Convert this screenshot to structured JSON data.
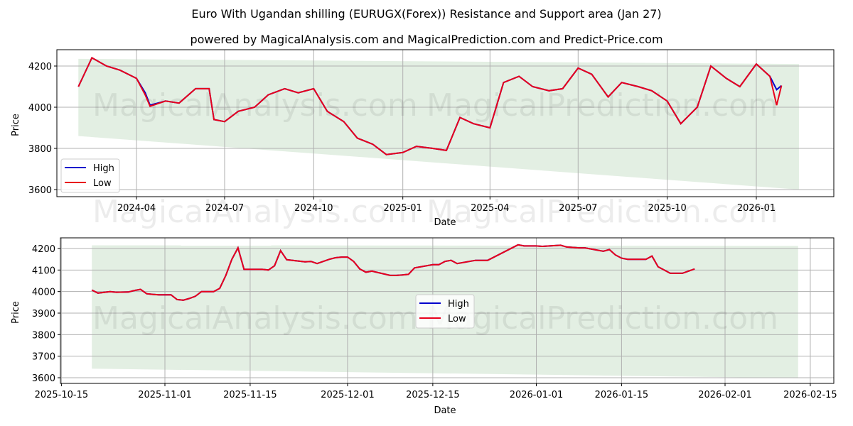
{
  "title": "Euro With Ugandan shilling (EURUGX(Forex)) Resistance and Support area (Jan 27)",
  "subtitle": "powered by MagicalAnalysis.com and MagicalPrediction.com and Predict-Price.com",
  "watermarks": [
    "MagicalAnalysis.com",
    "MagicalPrediction.com"
  ],
  "colors": {
    "high": "#0000cc",
    "low": "#e8001c",
    "band": "#e3efe3",
    "grid": "#b0b0b0"
  },
  "legend": {
    "high": "High",
    "low": "Low"
  },
  "chart_data": [
    {
      "type": "line",
      "title": "Euro With Ugandan shilling (EURUGX(Forex)) Resistance and Support area (Jan 27)",
      "xlabel": "Date",
      "ylabel": "Price",
      "ylim": [
        3560,
        4270
      ],
      "yticks": [
        3600,
        3800,
        4000,
        4200
      ],
      "xticks": [
        "2024-04",
        "2024-07",
        "2024-10",
        "2025-01",
        "2025-04",
        "2025-07",
        "2025-10",
        "2026-01"
      ],
      "grid": true,
      "legend_position": "lower left",
      "band": {
        "start": "2024-02-01",
        "end": "2026-02-14",
        "upper_start": 4235,
        "upper_end": 4210,
        "lower_start": 3860,
        "lower_end": 3600
      },
      "series": [
        {
          "name": "High",
          "x": [
            "2024-02",
            "2024-02-15",
            "2024-03",
            "2024-03-15",
            "2024-04",
            "2024-04-10",
            "2024-04-15",
            "2024-05",
            "2024-05-15",
            "2024-06",
            "2024-06-15",
            "2024-06-20",
            "2024-07",
            "2024-07-15",
            "2024-08",
            "2024-08-15",
            "2024-09",
            "2024-09-15",
            "2024-10",
            "2024-10-15",
            "2024-11",
            "2024-11-15",
            "2024-12",
            "2024-12-15",
            "2025-01",
            "2025-01-15",
            "2025-02",
            "2025-02-15",
            "2025-03",
            "2025-03-15",
            "2025-04",
            "2025-04-15",
            "2025-05",
            "2025-05-15",
            "2025-06",
            "2025-06-15",
            "2025-07",
            "2025-07-15",
            "2025-08",
            "2025-08-15",
            "2025-09",
            "2025-09-15",
            "2025-10",
            "2025-10-15",
            "2025-11",
            "2025-11-15",
            "2025-12",
            "2025-12-15",
            "2026-01",
            "2026-01-15",
            "2026-01-22",
            "2026-01-27"
          ],
          "values": [
            4100,
            4240,
            4200,
            4180,
            4140,
            4070,
            4010,
            4030,
            4020,
            4090,
            4090,
            3940,
            3930,
            3980,
            4000,
            4060,
            4090,
            4070,
            4090,
            3980,
            3930,
            3850,
            3820,
            3770,
            3780,
            3810,
            3800,
            3790,
            3950,
            3920,
            3900,
            4120,
            4150,
            4100,
            4080,
            4090,
            4190,
            4160,
            4050,
            4120,
            4100,
            4080,
            4030,
            3920,
            4000,
            4200,
            4140,
            4100,
            4210,
            4150,
            4085,
            4105
          ]
        },
        {
          "name": "Low",
          "x": [
            "2024-02",
            "2024-02-15",
            "2024-03",
            "2024-03-15",
            "2024-04",
            "2024-04-10",
            "2024-04-15",
            "2024-05",
            "2024-05-15",
            "2024-06",
            "2024-06-15",
            "2024-06-20",
            "2024-07",
            "2024-07-15",
            "2024-08",
            "2024-08-15",
            "2024-09",
            "2024-09-15",
            "2024-10",
            "2024-10-15",
            "2024-11",
            "2024-11-15",
            "2024-12",
            "2024-12-15",
            "2025-01",
            "2025-01-15",
            "2025-02",
            "2025-02-15",
            "2025-03",
            "2025-03-15",
            "2025-04",
            "2025-04-15",
            "2025-05",
            "2025-05-15",
            "2025-06",
            "2025-06-15",
            "2025-07",
            "2025-07-15",
            "2025-08",
            "2025-08-15",
            "2025-09",
            "2025-09-15",
            "2025-10",
            "2025-10-15",
            "2025-11",
            "2025-11-15",
            "2025-12",
            "2025-12-15",
            "2026-01",
            "2026-01-15",
            "2026-01-22",
            "2026-01-27"
          ],
          "values": [
            4100,
            4240,
            4200,
            4180,
            4140,
            4060,
            4005,
            4030,
            4020,
            4090,
            4090,
            3940,
            3930,
            3980,
            4000,
            4060,
            4090,
            4070,
            4090,
            3980,
            3930,
            3850,
            3820,
            3770,
            3780,
            3810,
            3800,
            3790,
            3950,
            3920,
            3900,
            4120,
            4150,
            4100,
            4080,
            4090,
            4190,
            4160,
            4050,
            4120,
            4100,
            4080,
            4030,
            3920,
            4000,
            4200,
            4140,
            4100,
            4210,
            4150,
            4010,
            4105
          ]
        }
      ]
    },
    {
      "type": "line",
      "xlabel": "Date",
      "ylabel": "Price",
      "ylim": [
        3570,
        4250
      ],
      "yticks": [
        3600,
        3700,
        3800,
        3900,
        4000,
        4100,
        4200
      ],
      "xticks": [
        "2025-10-15",
        "2025-11-01",
        "2025-11-15",
        "2025-12-01",
        "2025-12-15",
        "2026-01-01",
        "2026-01-15",
        "2026-02-01",
        "2026-02-15"
      ],
      "grid": true,
      "legend_position": "center",
      "band": {
        "start": "2025-10-20",
        "end": "2026-02-13",
        "upper_start": 4215,
        "upper_end": 4212,
        "lower_start": 3642,
        "lower_end": 3598
      },
      "series": [
        {
          "name": "High",
          "x": [
            "2025-10-20",
            "2025-10-21",
            "2025-10-23",
            "2025-10-24",
            "2025-10-26",
            "2025-10-27",
            "2025-10-28",
            "2025-10-29",
            "2025-10-30",
            "2025-10-31",
            "2025-11-01",
            "2025-11-02",
            "2025-11-03",
            "2025-11-04",
            "2025-11-05",
            "2025-11-06",
            "2025-11-07",
            "2025-11-08",
            "2025-11-09",
            "2025-11-10",
            "2025-11-11",
            "2025-11-12",
            "2025-11-13",
            "2025-11-14",
            "2025-11-17",
            "2025-11-18",
            "2025-11-19",
            "2025-11-20",
            "2025-11-21",
            "2025-11-24",
            "2025-11-25",
            "2025-11-26",
            "2025-11-28",
            "2025-11-29",
            "2025-11-30",
            "2025-12-01",
            "2025-12-02",
            "2025-12-03",
            "2025-12-04",
            "2025-12-05",
            "2025-12-08",
            "2025-12-09",
            "2025-12-10",
            "2025-12-11",
            "2025-12-12",
            "2025-12-15",
            "2025-12-16",
            "2025-12-17",
            "2025-12-18",
            "2025-12-19",
            "2025-12-22",
            "2025-12-23",
            "2025-12-24",
            "2025-12-29",
            "2025-12-30",
            "2025-12-31",
            "2026-01-01",
            "2026-01-02",
            "2026-01-05",
            "2026-01-06",
            "2026-01-07",
            "2026-01-08",
            "2026-01-09",
            "2026-01-12",
            "2026-01-13",
            "2026-01-14",
            "2026-01-15",
            "2026-01-16",
            "2026-01-19",
            "2026-01-20",
            "2026-01-21",
            "2026-01-22",
            "2026-01-23",
            "2026-01-24",
            "2026-01-25",
            "2026-01-27"
          ],
          "values": [
            4007,
            3993,
            4000,
            3997,
            3998,
            4005,
            4010,
            3990,
            3987,
            3985,
            3985,
            3985,
            3963,
            3960,
            3968,
            3978,
            4000,
            4000,
            4000,
            4015,
            4075,
            4150,
            4203,
            4103,
            4103,
            4100,
            4120,
            4190,
            4148,
            4138,
            4140,
            4130,
            4150,
            4157,
            4160,
            4160,
            4140,
            4105,
            4090,
            4095,
            4075,
            4075,
            4077,
            4080,
            4110,
            4125,
            4125,
            4140,
            4145,
            4130,
            4145,
            4145,
            4145,
            4217,
            4212,
            4212,
            4212,
            4210,
            4215,
            4207,
            4205,
            4203,
            4203,
            4187,
            4195,
            4170,
            4155,
            4150,
            4150,
            4165,
            4115,
            4100,
            4085,
            4085,
            4085,
            4105
          ]
        },
        {
          "name": "Low",
          "x": [
            "2025-10-20",
            "2025-10-21",
            "2025-10-23",
            "2025-10-24",
            "2025-10-26",
            "2025-10-27",
            "2025-10-28",
            "2025-10-29",
            "2025-10-30",
            "2025-10-31",
            "2025-11-01",
            "2025-11-02",
            "2025-11-03",
            "2025-11-04",
            "2025-11-05",
            "2025-11-06",
            "2025-11-07",
            "2025-11-08",
            "2025-11-09",
            "2025-11-10",
            "2025-11-11",
            "2025-11-12",
            "2025-11-13",
            "2025-11-14",
            "2025-11-17",
            "2025-11-18",
            "2025-11-19",
            "2025-11-20",
            "2025-11-21",
            "2025-11-24",
            "2025-11-25",
            "2025-11-26",
            "2025-11-28",
            "2025-11-29",
            "2025-11-30",
            "2025-12-01",
            "2025-12-02",
            "2025-12-03",
            "2025-12-04",
            "2025-12-05",
            "2025-12-08",
            "2025-12-09",
            "2025-12-10",
            "2025-12-11",
            "2025-12-12",
            "2025-12-15",
            "2025-12-16",
            "2025-12-17",
            "2025-12-18",
            "2025-12-19",
            "2025-12-22",
            "2025-12-23",
            "2025-12-24",
            "2025-12-29",
            "2025-12-30",
            "2025-12-31",
            "2026-01-01",
            "2026-01-02",
            "2026-01-05",
            "2026-01-06",
            "2026-01-07",
            "2026-01-08",
            "2026-01-09",
            "2026-01-12",
            "2026-01-13",
            "2026-01-14",
            "2026-01-15",
            "2026-01-16",
            "2026-01-19",
            "2026-01-20",
            "2026-01-21",
            "2026-01-22",
            "2026-01-23",
            "2026-01-24",
            "2026-01-25",
            "2026-01-27"
          ],
          "values": [
            4007,
            3993,
            4000,
            3997,
            3998,
            4005,
            4010,
            3990,
            3987,
            3985,
            3985,
            3985,
            3963,
            3960,
            3968,
            3978,
            4000,
            4000,
            4000,
            4015,
            4075,
            4150,
            4203,
            4103,
            4103,
            4100,
            4120,
            4190,
            4148,
            4138,
            4140,
            4130,
            4150,
            4157,
            4160,
            4160,
            4140,
            4105,
            4090,
            4095,
            4075,
            4075,
            4077,
            4080,
            4110,
            4125,
            4125,
            4140,
            4145,
            4130,
            4145,
            4145,
            4145,
            4217,
            4212,
            4212,
            4212,
            4210,
            4215,
            4207,
            4205,
            4203,
            4203,
            4187,
            4195,
            4170,
            4155,
            4150,
            4150,
            4165,
            4115,
            4100,
            4085,
            4085,
            4085,
            4105
          ]
        }
      ]
    }
  ]
}
